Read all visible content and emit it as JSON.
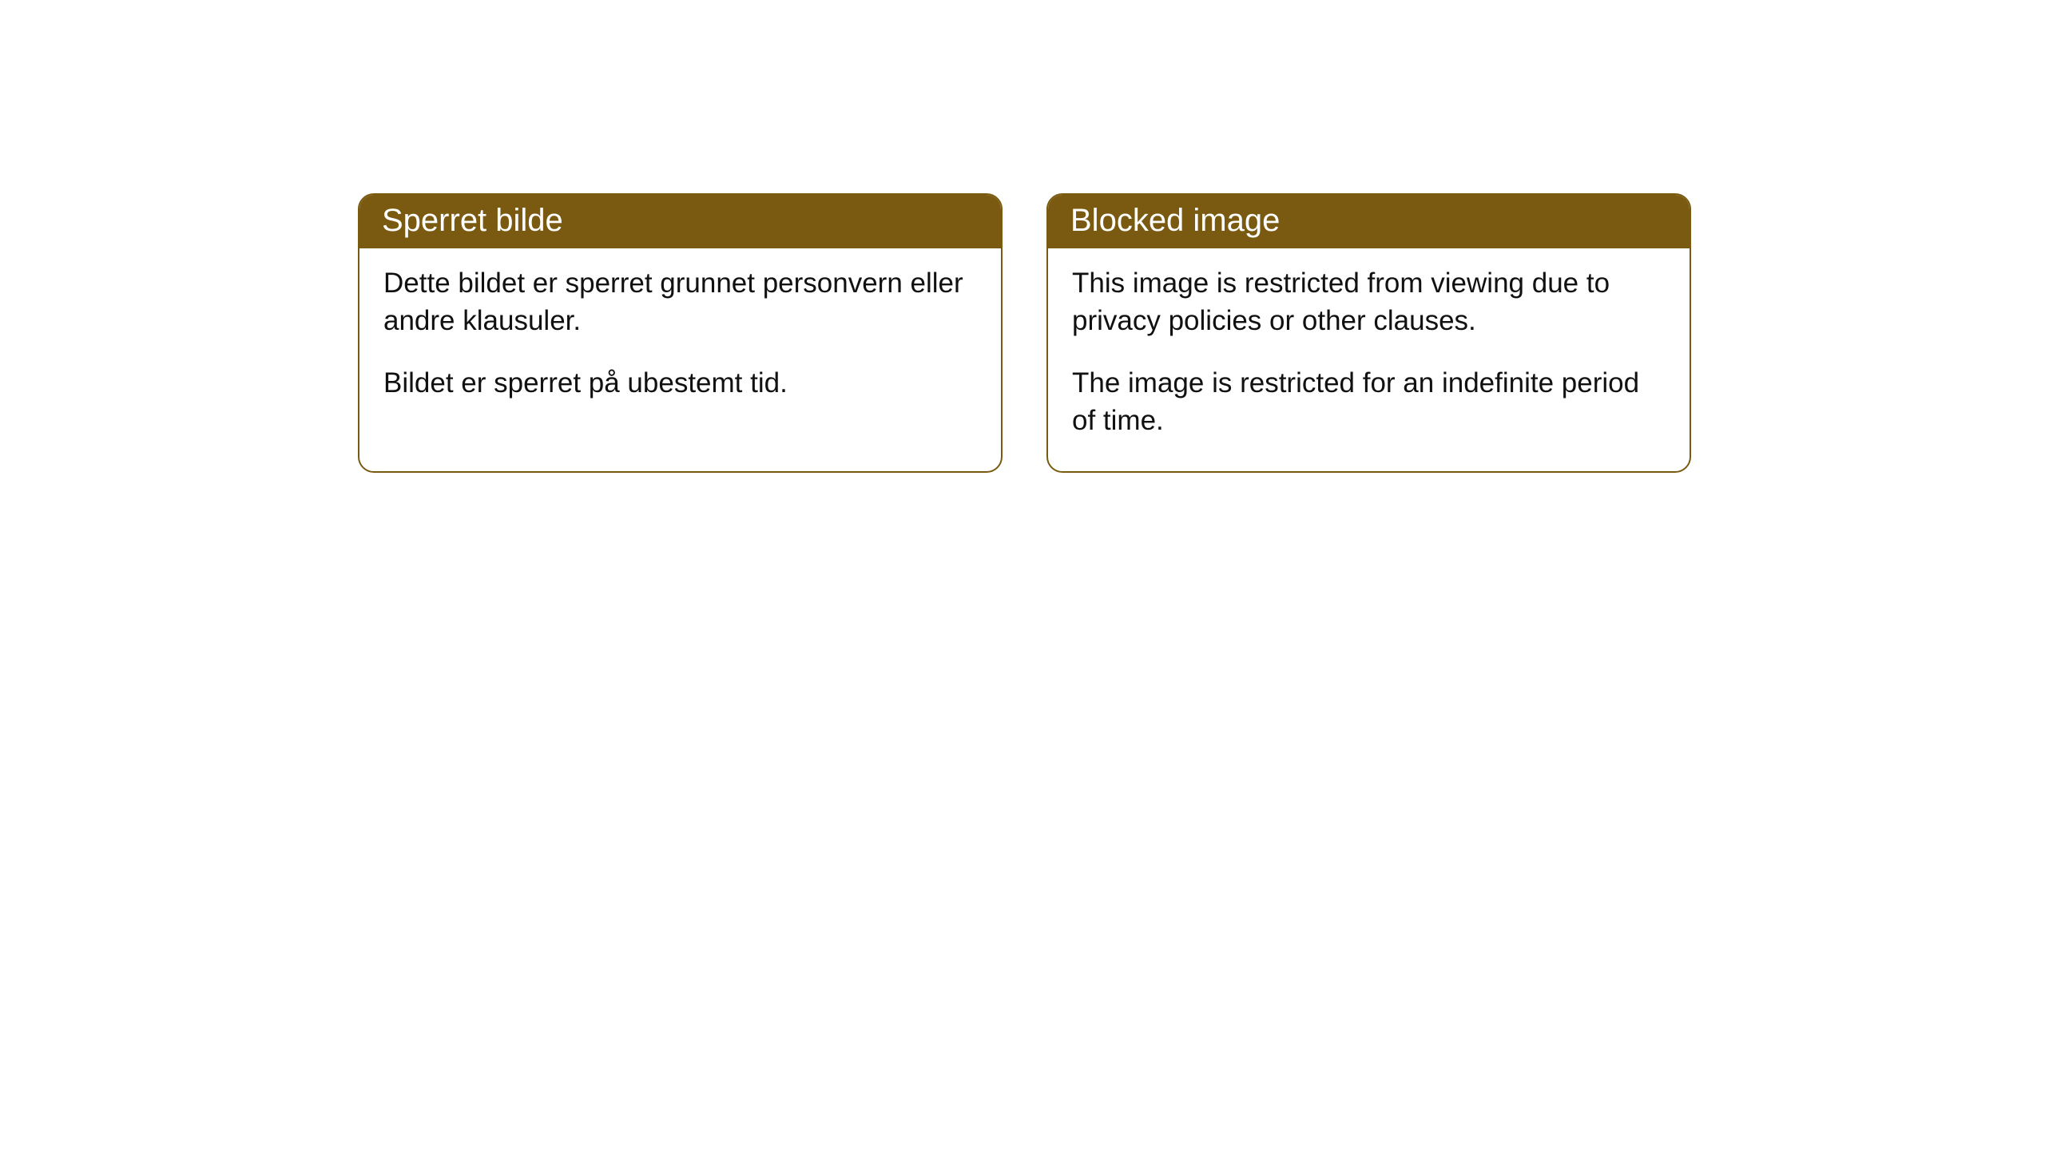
{
  "cards": [
    {
      "title": "Sperret bilde",
      "paragraph1": "Dette bildet er sperret grunnet personvern eller andre klausuler.",
      "paragraph2": "Bildet er sperret på ubestemt tid."
    },
    {
      "title": "Blocked image",
      "paragraph1": "This image is restricted from viewing due to privacy policies or other clauses.",
      "paragraph2": "The image is restricted for an indefinite period of time."
    }
  ],
  "styling": {
    "header_bg_color": "#7a5a10",
    "header_text_color": "#ffffff",
    "border_color": "#7a5a10",
    "body_text_color": "#111111",
    "background_color": "#ffffff",
    "border_radius": 20,
    "title_fontsize": 40,
    "body_fontsize": 35
  }
}
